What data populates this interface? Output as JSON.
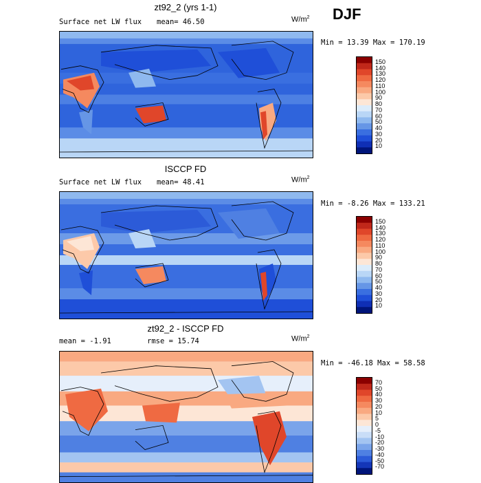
{
  "season": "DJF",
  "panels": [
    {
      "title": "zt92_2 (yrs 1-1)",
      "left_text": "Surface net LW flux",
      "center_text": "mean=  46.50",
      "units": "W/m",
      "units_sup": "2",
      "minmax": "Min =  13.39 Max = 170.19",
      "colorbar": {
        "labels": [
          "150",
          "140",
          "130",
          "120",
          "110",
          "100",
          "90",
          "80",
          "70",
          "60",
          "50",
          "40",
          "30",
          "20",
          "10"
        ],
        "colors": [
          "#8b0000",
          "#c0281a",
          "#e0462a",
          "#ef6a42",
          "#f5895f",
          "#f9a981",
          "#fcc9a9",
          "#fde6d6",
          "#dcecfb",
          "#b9d6f6",
          "#8fb9ef",
          "#6696e6",
          "#3a6fe0",
          "#1f4fd8",
          "#0f2fb5",
          "#00157a"
        ]
      }
    },
    {
      "title": "ISCCP FD",
      "left_text": "Surface net LW flux",
      "center_text": "mean=  48.41",
      "units": "W/m",
      "units_sup": "2",
      "minmax": "Min =  -8.26 Max = 133.21",
      "colorbar": {
        "labels": [
          "150",
          "140",
          "130",
          "120",
          "110",
          "100",
          "90",
          "80",
          "70",
          "60",
          "50",
          "40",
          "30",
          "20",
          "10"
        ],
        "colors": [
          "#8b0000",
          "#c0281a",
          "#e0462a",
          "#ef6a42",
          "#f5895f",
          "#f9a981",
          "#fcc9a9",
          "#fde6d6",
          "#dcecfb",
          "#b9d6f6",
          "#8fb9ef",
          "#6696e6",
          "#3a6fe0",
          "#1f4fd8",
          "#0f2fb5",
          "#00157a"
        ]
      }
    },
    {
      "title": "zt92_2 - ISCCP FD",
      "left_text": "mean =  -1.91",
      "center_text": "rmse =  15.74",
      "units": "W/m",
      "units_sup": "2",
      "minmax": "Min = -46.18 Max =  58.58",
      "colorbar": {
        "labels": [
          "70",
          "50",
          "40",
          "30",
          "20",
          "10",
          "5",
          "0",
          "-5",
          "-10",
          "-20",
          "-30",
          "-40",
          "-50",
          "-70"
        ],
        "colors": [
          "#8b0000",
          "#c0281a",
          "#e0462a",
          "#ef6a42",
          "#f5895f",
          "#f9a981",
          "#fcc9a9",
          "#fde6d6",
          "#e6effb",
          "#c9ddf7",
          "#a3c4f1",
          "#7aa4ea",
          "#4f80e2",
          "#2c5bd8",
          "#1436b8",
          "#00157a"
        ]
      }
    }
  ],
  "chart_data": {
    "type": "heatmap",
    "description_fields": "three global lat-lon maps with contour-level colorbars",
    "season": "DJF"
  }
}
